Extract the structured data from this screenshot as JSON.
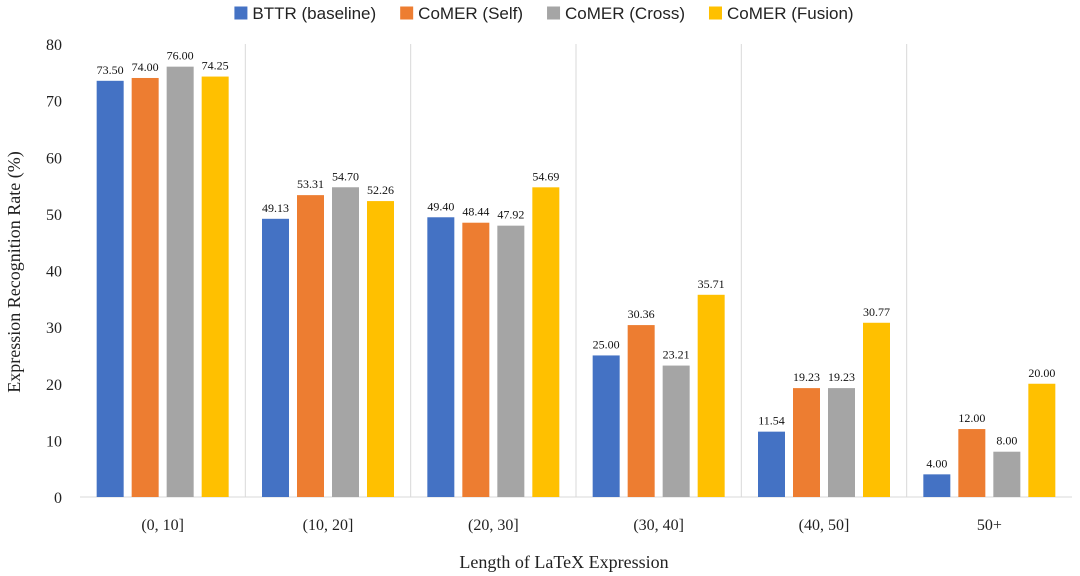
{
  "chart_data": {
    "type": "bar",
    "title": "",
    "xlabel": "Length of LaTeX Expression",
    "ylabel": "Expression Recognition Rate (%)",
    "ylim": [
      0,
      80
    ],
    "yticks": [
      0,
      10,
      20,
      30,
      40,
      50,
      60,
      70,
      80
    ],
    "categories": [
      "(0, 10]",
      "(10, 20]",
      "(20, 30]",
      "(30, 40]",
      "(40, 50]",
      "50+"
    ],
    "legend_position": "top-center",
    "series": [
      {
        "name": "BTTR (baseline)",
        "color": "#4472C4",
        "values": [
          73.5,
          49.13,
          49.4,
          25.0,
          11.54,
          4.0
        ],
        "labels": [
          "73.50",
          "49.13",
          "49.40",
          "25.00",
          "11.54",
          "4.00"
        ]
      },
      {
        "name": "CoMER (Self)",
        "color": "#ED7D31",
        "values": [
          74.0,
          53.31,
          48.44,
          30.36,
          19.23,
          12.0
        ],
        "labels": [
          "74.00",
          "53.31",
          "48.44",
          "30.36",
          "19.23",
          "12.00"
        ]
      },
      {
        "name": "CoMER (Cross)",
        "color": "#A5A5A5",
        "values": [
          76.0,
          54.7,
          47.92,
          23.21,
          19.23,
          8.0
        ],
        "labels": [
          "76.00",
          "54.70",
          "47.92",
          "23.21",
          "19.23",
          "8.00"
        ]
      },
      {
        "name": "CoMER (Fusion)",
        "color": "#FFC000",
        "values": [
          74.25,
          52.26,
          54.69,
          35.71,
          30.77,
          20.0
        ],
        "labels": [
          "74.25",
          "52.26",
          "54.69",
          "35.71",
          "30.77",
          "20.00"
        ]
      }
    ]
  }
}
